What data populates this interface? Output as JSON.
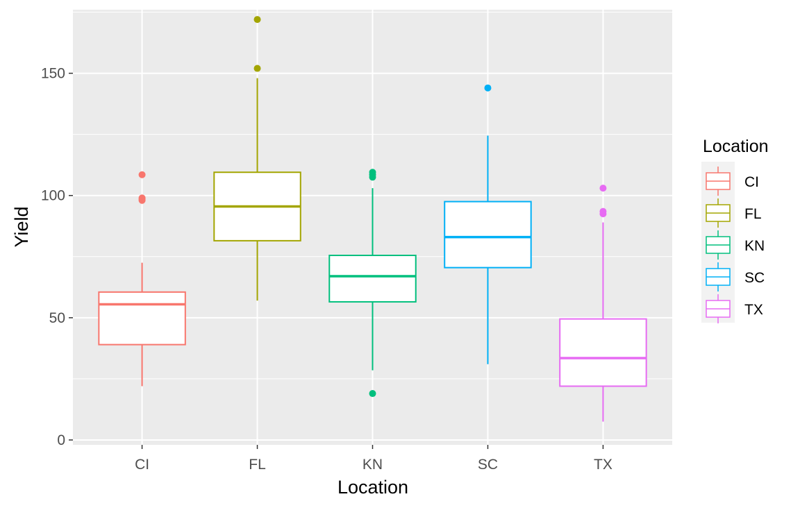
{
  "chart_data": {
    "type": "boxplot",
    "title": "",
    "xlabel": "Location",
    "ylabel": "Yield",
    "ylim": [
      -2,
      176
    ],
    "yticks": [
      0,
      50,
      100,
      150
    ],
    "grid": true,
    "legend": {
      "title": "Location",
      "placement": "right"
    },
    "categories": [
      "CI",
      "FL",
      "KN",
      "SC",
      "TX"
    ],
    "colors": {
      "CI": "#F8766D",
      "FL": "#A3A500",
      "KN": "#00BF7D",
      "SC": "#00B0F6",
      "TX": "#E76BF3"
    },
    "boxes": [
      {
        "name": "CI",
        "lower_whisker": 22,
        "q1": 39,
        "median": 55.5,
        "q3": 60.5,
        "upper_whisker": 72.5,
        "outliers": [
          98,
          98.5,
          99,
          108.5
        ]
      },
      {
        "name": "FL",
        "lower_whisker": 57,
        "q1": 81.5,
        "median": 95.5,
        "q3": 109.5,
        "upper_whisker": 148,
        "outliers": [
          152,
          172
        ]
      },
      {
        "name": "KN",
        "lower_whisker": 28.5,
        "q1": 56.5,
        "median": 67,
        "q3": 75.5,
        "upper_whisker": 103,
        "outliers": [
          19,
          107.5,
          108.5,
          109.5
        ]
      },
      {
        "name": "SC",
        "lower_whisker": 31,
        "q1": 70.5,
        "median": 83,
        "q3": 97.5,
        "upper_whisker": 124.5,
        "outliers": [
          144
        ]
      },
      {
        "name": "TX",
        "lower_whisker": 7.5,
        "q1": 22,
        "median": 33.5,
        "q3": 49.5,
        "upper_whisker": 89,
        "outliers": [
          92.5,
          93.5,
          103
        ]
      }
    ]
  }
}
